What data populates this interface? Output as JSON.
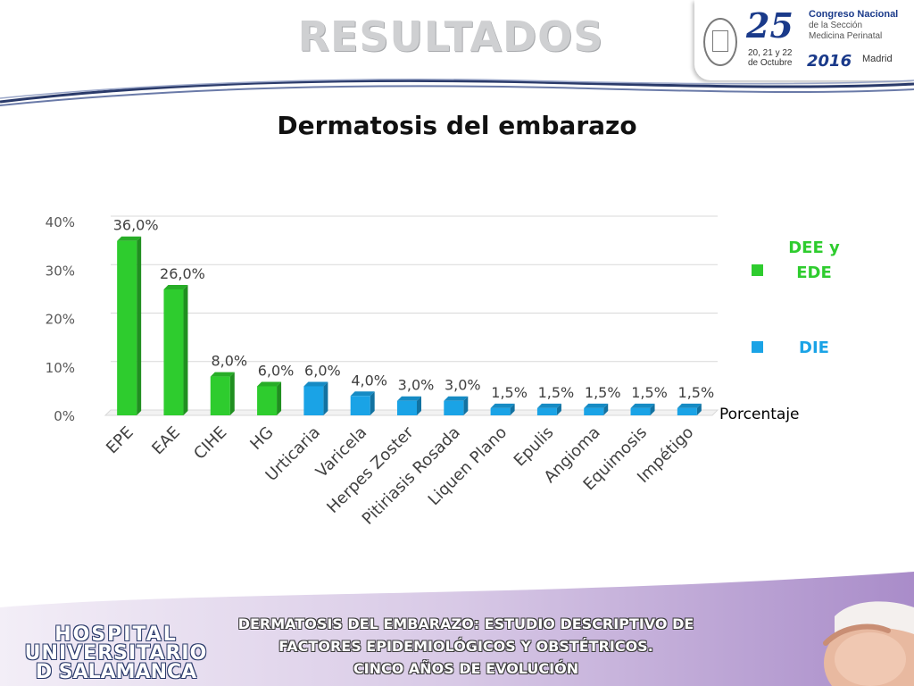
{
  "header": {
    "title": "RESULTADOS",
    "congress": {
      "number": "25",
      "name": "Congreso Nacional",
      "subtitle_line1": "de la Sección",
      "subtitle_line2": "Medicina Perinatal",
      "dates": "20, 21 y 22 de Octubre",
      "year": "2016",
      "city": "Madrid"
    }
  },
  "slide_title": "Dermatosis del embarazo",
  "footer": {
    "hospital_line1": "HOSPITAL",
    "hospital_line2": "UNIVERSITARIO",
    "hospital_line3": "D SALAMANCA",
    "study_line1": "DERMATOSIS DEL EMBARAZO: ESTUDIO DESCRIPTIVO DE",
    "study_line2": "FACTORES EPIDEMIOLÓGICOS Y OBSTÉTRICOS.",
    "study_line3": "CINCO AÑOS DE EVOLUCIÓN"
  },
  "colors": {
    "dee_ede": "#2ecc2e",
    "die": "#1aa3e6",
    "grid": "#d9d9d9"
  },
  "chart_data": {
    "type": "bar",
    "title": "",
    "categories": [
      "EPE",
      "EAE",
      "CIHE",
      "HG",
      "Urticaria",
      "Varicela",
      "Herpes Zoster",
      "Pitiriasis Rosada",
      "Liquen Plano",
      "Epulis",
      "Angioma",
      "Equimosis",
      "Impétigo"
    ],
    "values": [
      36.0,
      26.0,
      8.0,
      6.0,
      6.0,
      4.0,
      3.0,
      3.0,
      1.5,
      1.5,
      1.5,
      1.5,
      1.5
    ],
    "value_labels": [
      "36,0%",
      "26,0%",
      "8,0%",
      "6,0%",
      "6,0%",
      "4,0%",
      "3,0%",
      "3,0%",
      "1,5%",
      "1,5%",
      "1,5%",
      "1,5%",
      "1,5%"
    ],
    "groups": [
      "DEE y EDE",
      "DEE y EDE",
      "DEE y EDE",
      "DEE y EDE",
      "DIE",
      "DIE",
      "DIE",
      "DIE",
      "DIE",
      "DIE",
      "DIE",
      "DIE",
      "DIE"
    ],
    "series_name": "Porcentaje",
    "legend": [
      {
        "label": "DEE y EDE",
        "color": "#2ecc2e"
      },
      {
        "label": "DIE",
        "color": "#1aa3e6"
      }
    ],
    "legend_position": "right",
    "yticks": [
      "0%",
      "10%",
      "20%",
      "30%",
      "40%"
    ],
    "ylim": [
      0,
      40
    ],
    "grid": true
  }
}
